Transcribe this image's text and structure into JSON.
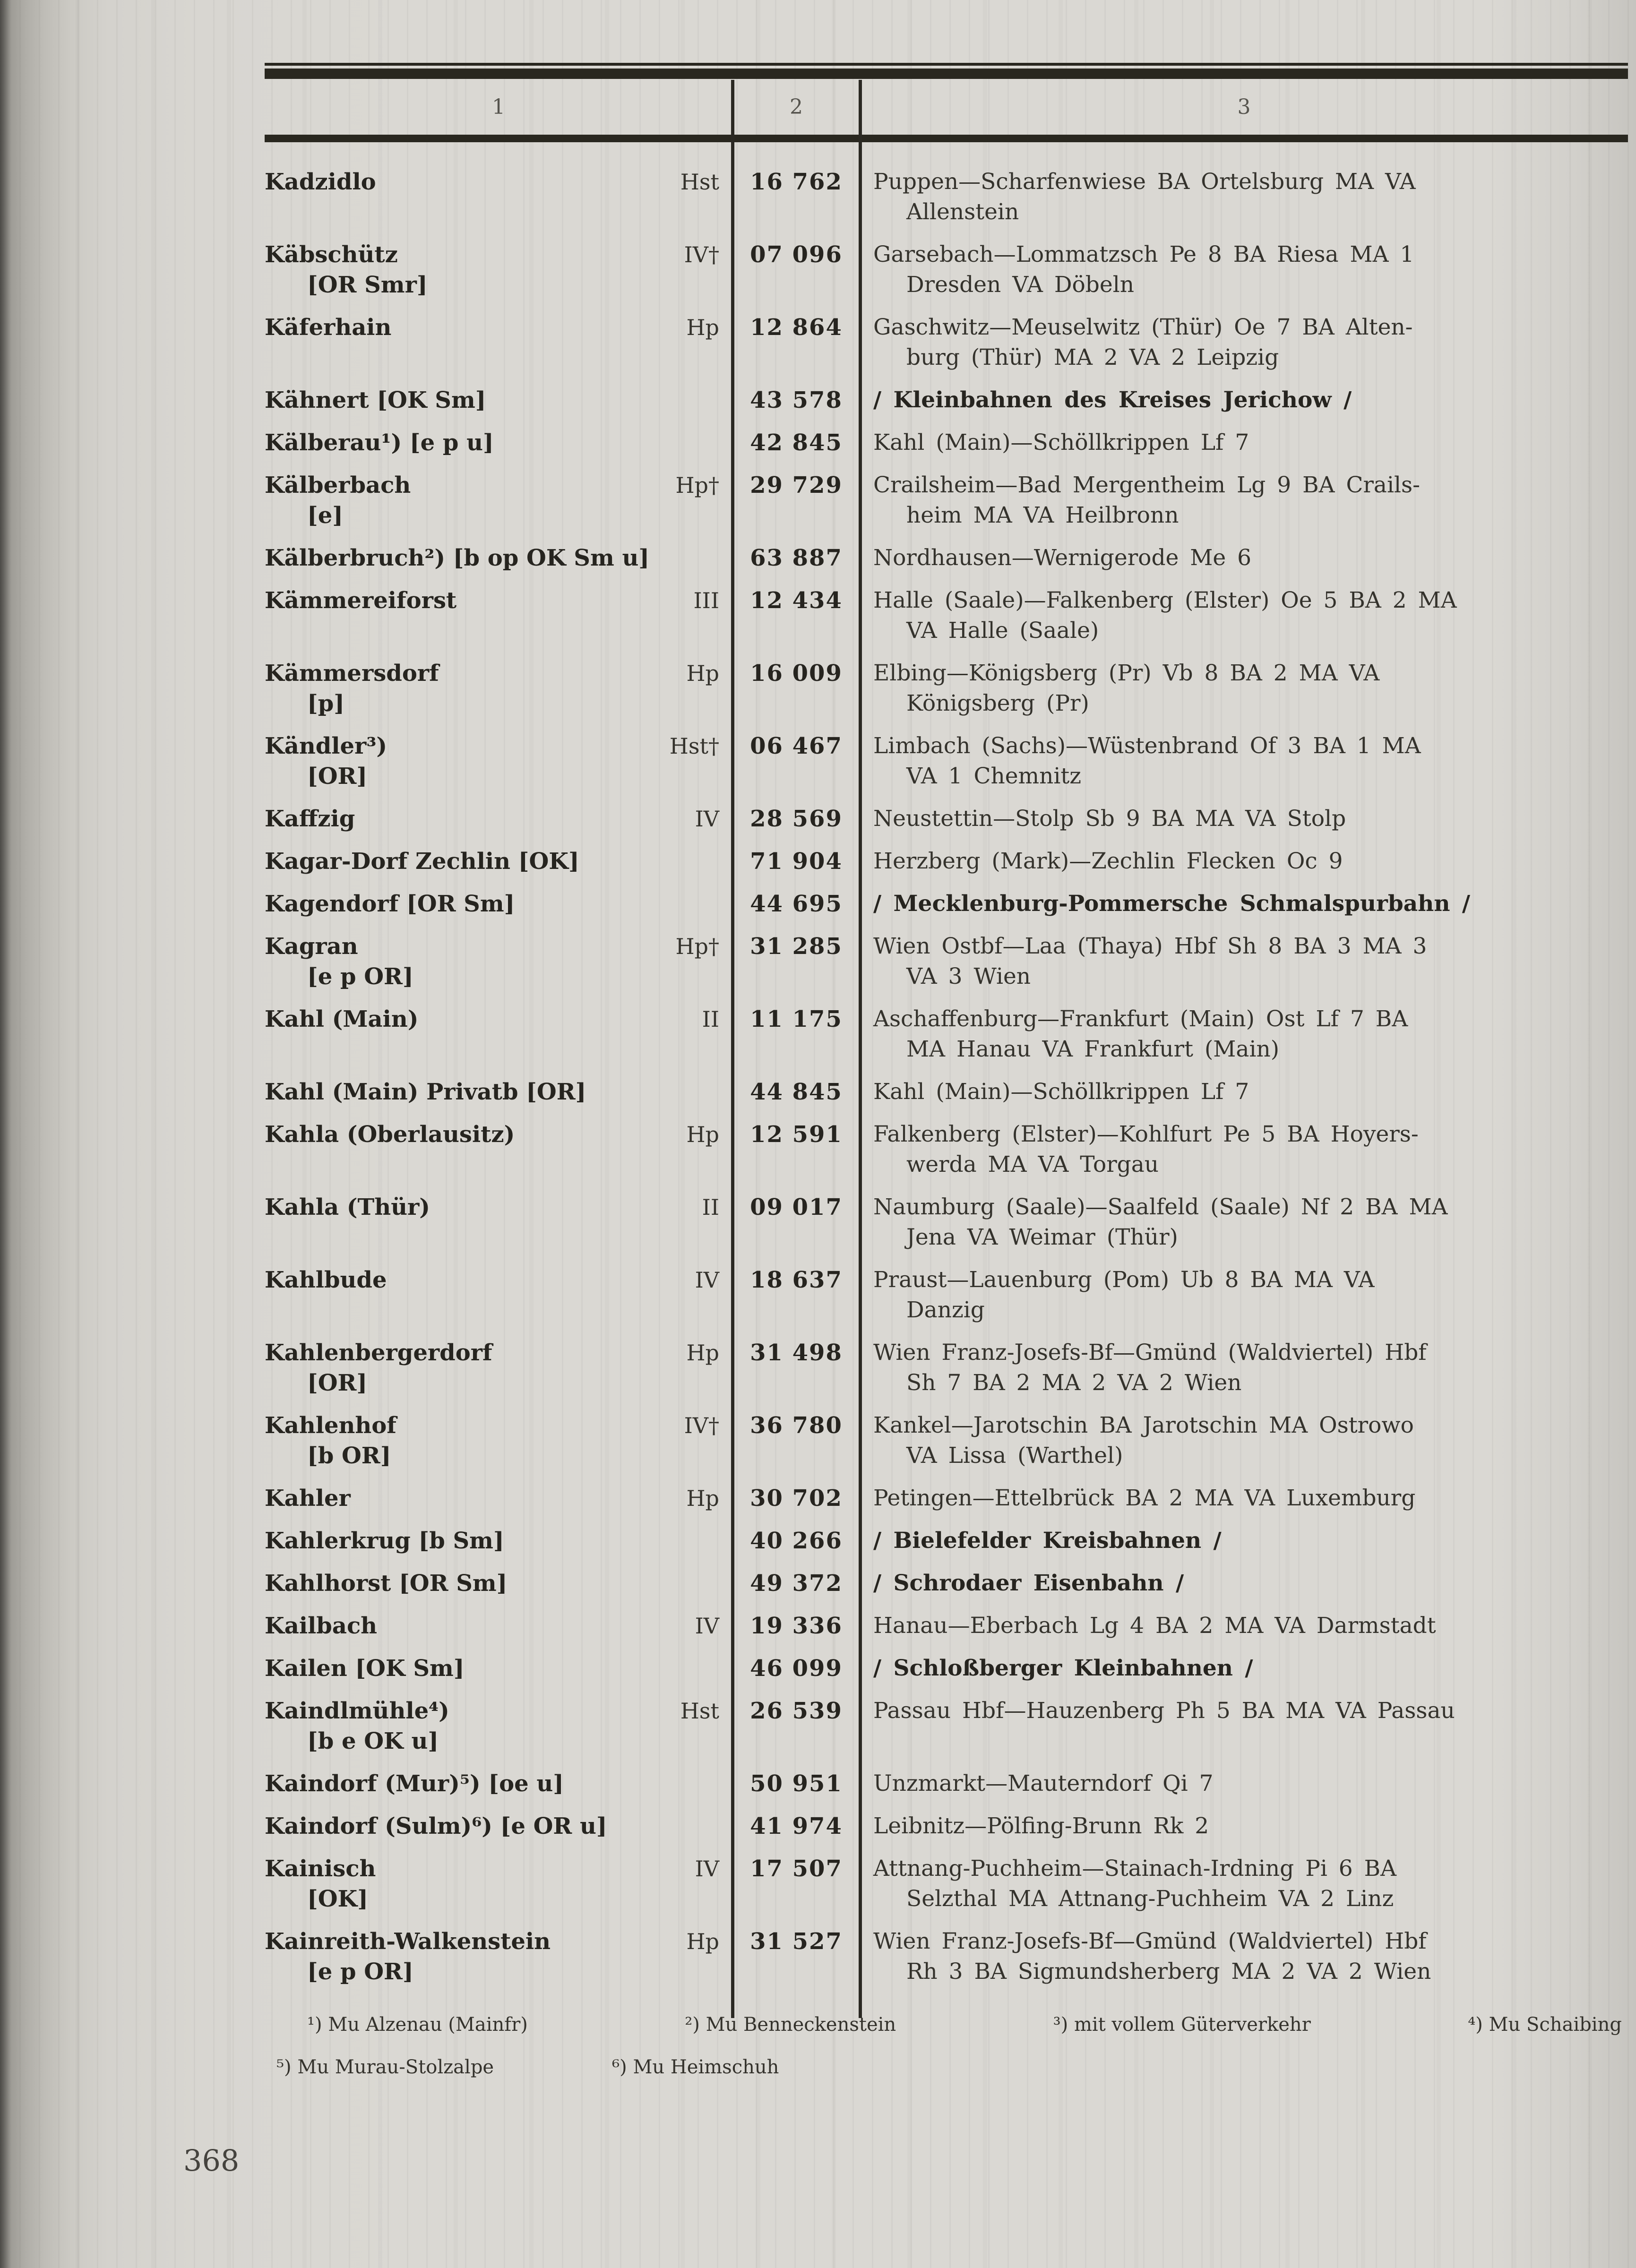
{
  "page": {
    "number": "368"
  },
  "table": {
    "col_headers": [
      "1",
      "2",
      "3"
    ],
    "rows": [
      {
        "name": [
          "Kadzidlo"
        ],
        "cls": "Hst",
        "num": "16 762",
        "route": [
          "Puppen—Scharfenwiese  BA  Ortelsburg  MA  VA",
          "Allenstein"
        ]
      },
      {
        "name": [
          "Käbschütz",
          "[OR Smr]"
        ],
        "cls": "IV†",
        "num": "07 096",
        "route": [
          "Garsebach—Lommatzsch  Pe 8  BA  Riesa  MA 1",
          "Dresden  VA Döbeln"
        ]
      },
      {
        "name": [
          "Käferhain"
        ],
        "cls": "Hp",
        "num": "12 864",
        "route": [
          "Gaschwitz—Meuselwitz  (Thür)  Oe 7  BA  Alten-",
          "burg (Thür)  MA 2  VA 2 Leipzig"
        ]
      },
      {
        "name": [
          "Kähnert [OK Sm]"
        ],
        "cls": "",
        "num": "43 578",
        "route": [
          "/ Kleinbahnen des Kreises Jerichow /"
        ],
        "bold": true
      },
      {
        "name": [
          "Kälberau¹) [e p u]"
        ],
        "cls": "",
        "num": "42 845",
        "route": [
          "Kahl (Main)—Schöllkrippen  Lf 7"
        ]
      },
      {
        "name": [
          "Kälberbach",
          "[e]"
        ],
        "cls": "Hp†",
        "num": "29 729",
        "route": [
          "Crailsheim—Bad  Mergentheim  Lg 9  BA  Crails-",
          "heim  MA  VA Heilbronn"
        ]
      },
      {
        "name": [
          "Kälberbruch²) [b op OK Sm u]"
        ],
        "cls": "",
        "num": "63 887",
        "route": [
          "Nordhausen—Wernigerode  Me 6"
        ]
      },
      {
        "name": [
          "Kämmereiforst"
        ],
        "cls": "III",
        "num": "12 434",
        "route": [
          "Halle (Saale)—Falkenberg (Elster)  Oe 5  BA 2 MA",
          "VA Halle (Saale)"
        ]
      },
      {
        "name": [
          "Kämmersdorf",
          "[p]"
        ],
        "cls": "Hp",
        "num": "16 009",
        "route": [
          "Elbing—Königsberg  (Pr)  Vb 8  BA 2  MA  VA",
          "Königsberg (Pr)"
        ]
      },
      {
        "name": [
          "Kändler³)",
          "[OR]"
        ],
        "cls": "Hst†",
        "num": "06 467",
        "route": [
          "Limbach  (Sachs)—Wüstenbrand  Of 3  BA 1  MA",
          "VA 1 Chemnitz"
        ]
      },
      {
        "name": [
          "Kaffzig"
        ],
        "cls": "IV",
        "num": "28 569",
        "route": [
          "Neustettin—Stolp  Sb 9  BA MA VA Stolp"
        ]
      },
      {
        "name": [
          "Kagar-Dorf Zechlin [OK]"
        ],
        "cls": "",
        "num": "71 904",
        "route": [
          "Herzberg (Mark)—Zechlin Flecken  Oc 9"
        ]
      },
      {
        "name": [
          "Kagendorf [OR Sm]"
        ],
        "cls": "",
        "num": "44 695",
        "route": [
          "/ Mecklenburg-Pommersche Schmalspurbahn /"
        ],
        "bold": true
      },
      {
        "name": [
          "Kagran",
          "[e p OR]"
        ],
        "cls": "Hp†",
        "num": "31 285",
        "route": [
          "Wien Ostbf—Laa (Thaya)  Hbf  Sh 8  BA 3  MA 3",
          "VA 3 Wien"
        ]
      },
      {
        "name": [
          "Kahl (Main)"
        ],
        "cls": "II",
        "num": "11 175",
        "route": [
          "Aschaffenburg—Frankfurt  (Main)  Ost  Lf 7  BA",
          "MA Hanau  VA Frankfurt (Main)"
        ]
      },
      {
        "name": [
          "Kahl (Main) Privatb [OR]"
        ],
        "cls": "",
        "num": "44 845",
        "route": [
          "Kahl (Main)—Schöllkrippen  Lf 7"
        ]
      },
      {
        "name": [
          "Kahla (Oberlausitz)"
        ],
        "cls": "Hp",
        "num": "12 591",
        "route": [
          "Falkenberg  (Elster)—Kohlfurt  Pe 5  BA  Hoyers-",
          "werda  MA  VA Torgau"
        ]
      },
      {
        "name": [
          "Kahla (Thür)"
        ],
        "cls": "II",
        "num": "09 017",
        "route": [
          "Naumburg (Saale)—Saalfeld (Saale)  Nf 2  BA MA",
          "Jena  VA Weimar (Thür)"
        ]
      },
      {
        "name": [
          "Kahlbude"
        ],
        "cls": "IV",
        "num": "18 637",
        "route": [
          "Praust—Lauenburg  (Pom)  Ub 8   BA  MA  VA",
          "Danzig"
        ]
      },
      {
        "name": [
          "Kahlenbergerdorf",
          "[OR]"
        ],
        "cls": "Hp",
        "num": "31 498",
        "route": [
          "Wien  Franz-Josefs-Bf—Gmünd  (Waldviertel)  Hbf",
          "Sh 7  BA 2  MA 2  VA 2  Wien"
        ]
      },
      {
        "name": [
          "Kahlenhof",
          "[b OR]"
        ],
        "cls": "IV†",
        "num": "36 780",
        "route": [
          "Kankel—Jarotschin  BA  Jarotschin  MA  Ostrowo",
          "VA Lissa (Warthel)"
        ]
      },
      {
        "name": [
          "Kahler"
        ],
        "cls": "Hp",
        "num": "30 702",
        "route": [
          "Petingen—Ettelbrück  BA 2  MA  VA Luxemburg"
        ]
      },
      {
        "name": [
          "Kahlerkrug [b Sm]"
        ],
        "cls": "",
        "num": "40 266",
        "route": [
          "/ Bielefelder Kreisbahnen /"
        ],
        "bold": true
      },
      {
        "name": [
          "Kahlhorst [OR Sm]"
        ],
        "cls": "",
        "num": "49 372",
        "route": [
          "/ Schrodaer Eisenbahn /"
        ],
        "bold": true
      },
      {
        "name": [
          "Kailbach"
        ],
        "cls": "IV",
        "num": "19 336",
        "route": [
          "Hanau—Eberbach  Lg 4  BA 2  MA  VA Darmstadt"
        ]
      },
      {
        "name": [
          "Kailen [OK Sm]"
        ],
        "cls": "",
        "num": "46 099",
        "route": [
          "/ Schloßberger Kleinbahnen /"
        ],
        "bold": true
      },
      {
        "name": [
          "Kaindlmühle⁴)",
          "[b e OK u]"
        ],
        "cls": "Hst",
        "num": "26 539",
        "route": [
          "Passau Hbf—Hauzenberg  Ph 5  BA MA VA Passau"
        ]
      },
      {
        "name": [
          "Kaindorf (Mur)⁵) [oe u]"
        ],
        "cls": "",
        "num": "50 951",
        "route": [
          "Unzmarkt—Mauterndorf  Qi 7"
        ]
      },
      {
        "name": [
          "Kaindorf (Sulm)⁶) [e OR u]"
        ],
        "cls": "",
        "num": "41 974",
        "route": [
          "Leibnitz—Pölfing-Brunn  Rk 2"
        ]
      },
      {
        "name": [
          "Kainisch",
          "[OK]"
        ],
        "cls": "IV",
        "num": "17 507",
        "route": [
          "Attnang-Puchheim—Stainach-Irdning   Pi 6   BA",
          "Selzthal  MA Attnang-Puchheim  VA 2 Linz"
        ]
      },
      {
        "name": [
          "Kainreith-Walkenstein",
          "[e p OR]"
        ],
        "cls": "Hp",
        "num": "31 527",
        "route": [
          "Wien  Franz-Josefs-Bf—Gmünd  (Waldviertel)  Hbf",
          "Rh 3  BA Sigmundsherberg  MA 2  VA 2 Wien"
        ]
      }
    ]
  },
  "footnotes": {
    "line1": [
      "¹) Mu Alzenau (Mainfr)",
      "²) Mu Benneckenstein",
      "³) mit vollem Güterverkehr",
      "⁴) Mu Schaibing"
    ],
    "line2": [
      "⁵) Mu Murau-Stolzalpe",
      "⁶) Mu Heimschuh"
    ]
  }
}
